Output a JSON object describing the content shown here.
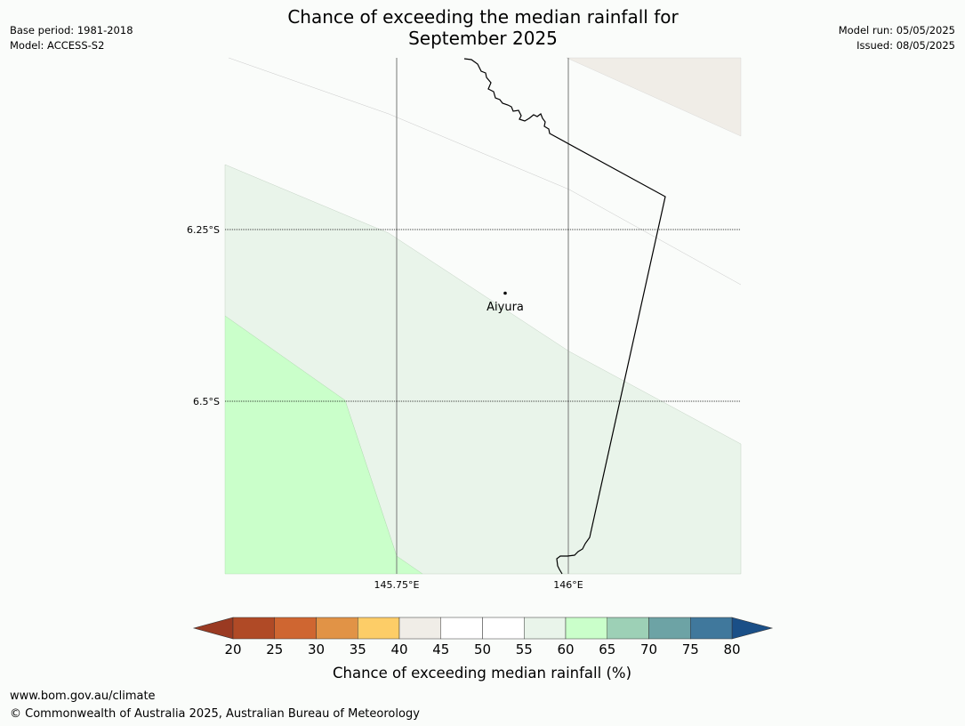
{
  "title_line1": "Chance of exceeding the median rainfall for",
  "title_line2": "September 2025",
  "base_period": "Base period: 1981-2018",
  "model": "Model: ACCESS-S2",
  "model_run": "Model run: 05/05/2025",
  "issued": "Issued: 08/05/2025",
  "map": {
    "location_label": "Aiyura",
    "lat_labels": [
      "6.25°S",
      "6.5°S"
    ],
    "lon_labels": [
      "145.75°E",
      "146°E"
    ],
    "colors": {
      "land_background": "#fafcfa",
      "band_40_45": "#f0ede7",
      "band_55_60": "#e9f4ea",
      "band_60_65": "#caffca"
    }
  },
  "colorbar": {
    "label": "Chance of exceeding median rainfall (%)",
    "ticks": [
      "20",
      "25",
      "30",
      "35",
      "40",
      "45",
      "50",
      "55",
      "60",
      "65",
      "70",
      "75",
      "80"
    ],
    "under_color": "#9a3a22",
    "over_color": "#1a4f87",
    "bin_colors": [
      "#b04a26",
      "#cf6631",
      "#e19346",
      "#fdcd67",
      "#f0ede7",
      "#ffffff",
      "#ffffff",
      "#e9f4ea",
      "#caffca",
      "#9dd0b6",
      "#6da3a5",
      "#40789c"
    ]
  },
  "footer_url": "www.bom.gov.au/climate",
  "footer_copyright": "© Commonwealth of Australia 2025, Australian Bureau of Meteorology"
}
